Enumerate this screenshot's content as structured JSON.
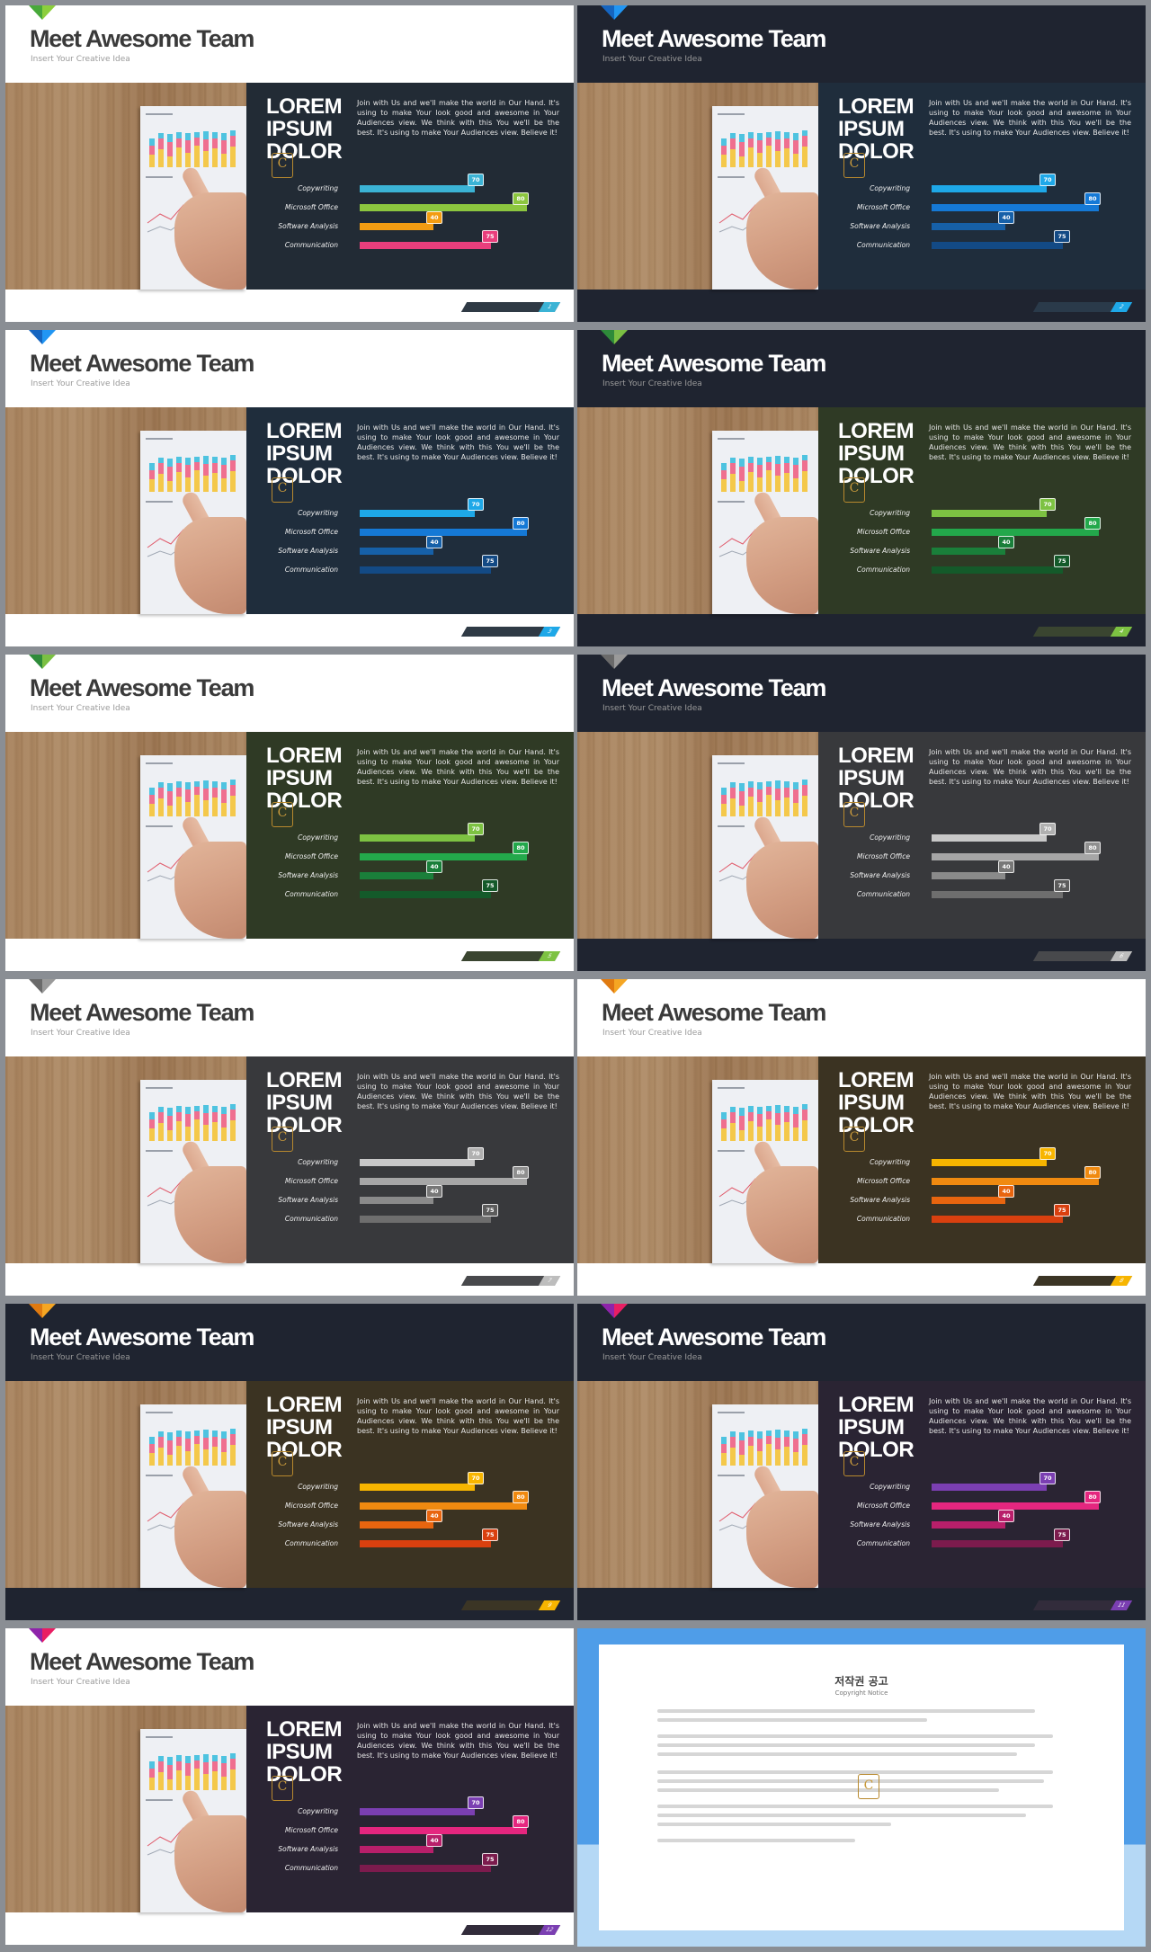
{
  "slide_common": {
    "title": "Meet Awesome Team",
    "subtitle": "Insert Your Creative Idea",
    "heading_lines": [
      "LOREM",
      "IPSUM",
      "DOLOR"
    ],
    "logo_letter": "C",
    "body": "Join with Us and we'll make the world in Our Hand. It's using to make Your look good and awesome in Your Audiences view. We think with this You we'll be the best. It's using to make Your Audiences view. Believe it!",
    "skills": [
      {
        "label": "Copywriting",
        "value": 70
      },
      {
        "label": "Microsoft Office",
        "value": 80
      },
      {
        "label": "Software Analysis",
        "value": 40
      },
      {
        "label": "Communication",
        "value": 75
      }
    ]
  },
  "slides": [
    {
      "page": "1",
      "bg": "light",
      "panel": "#222b35",
      "ribbon": [
        "#48a93a",
        "#8ccf3c"
      ],
      "bars": [
        "#3bb3d5",
        "#8cc63f",
        "#f39c12",
        "#e83e7c"
      ],
      "tags": [
        "#3bb3d5",
        "#8cc63f",
        "#f39c12",
        "#e83e7c"
      ],
      "footer": "#2f3a45",
      "accent": "#3bb3d5"
    },
    {
      "page": "2",
      "bg": "dark",
      "panel": "#1f2d3c",
      "ribbon": [
        "#1565c0",
        "#2196f3"
      ],
      "bars": [
        "#1ea8e8",
        "#1579d6",
        "#1660a8",
        "#134a85"
      ],
      "tags": [
        "#1ea8e8",
        "#1579d6",
        "#1660a8",
        "#134a85"
      ],
      "footer": "#2a3a4a",
      "accent": "#1ea8e8"
    },
    {
      "page": "3",
      "bg": "light",
      "panel": "#1f2d3c",
      "ribbon": [
        "#1565c0",
        "#2196f3"
      ],
      "bars": [
        "#1ea8e8",
        "#1579d6",
        "#1660a8",
        "#134a85"
      ],
      "tags": [
        "#1ea8e8",
        "#1579d6",
        "#1660a8",
        "#134a85"
      ],
      "footer": "#2f3a45",
      "accent": "#1ea8e8"
    },
    {
      "page": "4",
      "bg": "dark",
      "panel": "#2f3a25",
      "ribbon": [
        "#2e8b3a",
        "#7bc043"
      ],
      "bars": [
        "#7dc242",
        "#23a84b",
        "#1a7f3a",
        "#145a2a"
      ],
      "tags": [
        "#7dc242",
        "#23a84b",
        "#1a7f3a",
        "#145a2a"
      ],
      "footer": "#3a4530",
      "accent": "#7dc242"
    },
    {
      "page": "5",
      "bg": "light",
      "panel": "#2f3a25",
      "ribbon": [
        "#2e8b3a",
        "#7bc043"
      ],
      "bars": [
        "#7dc242",
        "#23a84b",
        "#1a7f3a",
        "#145a2a"
      ],
      "tags": [
        "#7dc242",
        "#23a84b",
        "#1a7f3a",
        "#145a2a"
      ],
      "footer": "#3a4530",
      "accent": "#7dc242"
    },
    {
      "page": "6",
      "bg": "dark",
      "panel": "#38393c",
      "ribbon": [
        "#6a6a6a",
        "#9a9a9a"
      ],
      "bars": [
        "#c8c8c8",
        "#a6a6a6",
        "#8a8a8a",
        "#6e6e6e"
      ],
      "tags": [
        "#b0b0b0",
        "#8f8f8f",
        "#777777",
        "#5c5c5c"
      ],
      "footer": "#48494c",
      "accent": "#bdbdbd"
    },
    {
      "page": "7",
      "bg": "light",
      "panel": "#38393c",
      "ribbon": [
        "#6a6a6a",
        "#9a9a9a"
      ],
      "bars": [
        "#c8c8c8",
        "#a6a6a6",
        "#8a8a8a",
        "#6e6e6e"
      ],
      "tags": [
        "#b0b0b0",
        "#8f8f8f",
        "#777777",
        "#5c5c5c"
      ],
      "footer": "#48494c",
      "accent": "#bdbdbd"
    },
    {
      "page": "8",
      "bg": "light",
      "panel": "#3b3322",
      "ribbon": [
        "#e07a10",
        "#f5a623"
      ],
      "bars": [
        "#f7b500",
        "#f08a10",
        "#e8650f",
        "#d9400f"
      ],
      "tags": [
        "#f7b500",
        "#f08a10",
        "#e8650f",
        "#d9400f"
      ],
      "footer": "#3b3525",
      "accent": "#f7b500"
    },
    {
      "page": "9",
      "bg": "dark",
      "panel": "#3b3322",
      "ribbon": [
        "#e07a10",
        "#f5a623"
      ],
      "bars": [
        "#f7b500",
        "#f08a10",
        "#e8650f",
        "#d9400f"
      ],
      "tags": [
        "#f7b500",
        "#f08a10",
        "#e8650f",
        "#d9400f"
      ],
      "footer": "#3b3525",
      "accent": "#f7b500"
    },
    {
      "page": "11",
      "bg": "dark",
      "panel": "#2a2433",
      "ribbon": [
        "#8e24aa",
        "#e91e63"
      ],
      "bars": [
        "#7b3fb2",
        "#e5267f",
        "#b81f6a",
        "#7c1b4d"
      ],
      "tags": [
        "#7b3fb2",
        "#e5267f",
        "#b81f6a",
        "#7c1b4d"
      ],
      "footer": "#322c3b",
      "accent": "#7b3fb2"
    },
    {
      "page": "12",
      "bg": "light",
      "panel": "#2a2433",
      "ribbon": [
        "#8e24aa",
        "#e91e63"
      ],
      "bars": [
        "#7b3fb2",
        "#e5267f",
        "#b81f6a",
        "#7c1b4d"
      ],
      "tags": [
        "#7b3fb2",
        "#e5267f",
        "#b81f6a",
        "#7c1b4d"
      ],
      "footer": "#322c3b",
      "accent": "#7b3fb2"
    }
  ],
  "notice": {
    "title": "저작권 공고",
    "subtitle": "Copyright Notice",
    "logo_letter": "C"
  }
}
